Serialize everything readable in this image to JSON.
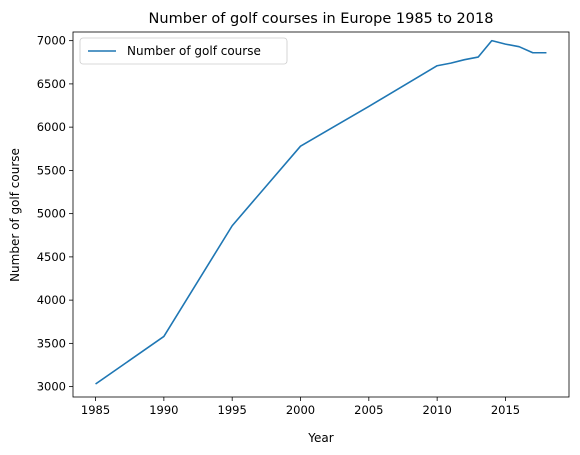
{
  "chart_data": {
    "type": "line",
    "title": "Number of golf courses in Europe 1985 to 2018",
    "xlabel": "Year",
    "ylabel": "Number of golf course",
    "xlim": [
      1983.35,
      2019.65
    ],
    "ylim": [
      2880,
      7100
    ],
    "xticks": [
      1985,
      1990,
      1995,
      2000,
      2005,
      2010,
      2015
    ],
    "yticks": [
      3000,
      3500,
      4000,
      4500,
      5000,
      5500,
      6000,
      6500,
      7000
    ],
    "grid": false,
    "legend": "top-left",
    "colors": {
      "series": "#1f77b4"
    },
    "series": [
      {
        "name": "Number of golf course",
        "x": [
          1985,
          1990,
          1995,
          2000,
          2005,
          2010,
          2011,
          2012,
          2013,
          2014,
          2015,
          2016,
          2017,
          2018
        ],
        "values": [
          3030,
          3580,
          4860,
          5780,
          6240,
          6710,
          6740,
          6780,
          6810,
          7000,
          6960,
          6930,
          6860,
          6860
        ]
      }
    ]
  }
}
